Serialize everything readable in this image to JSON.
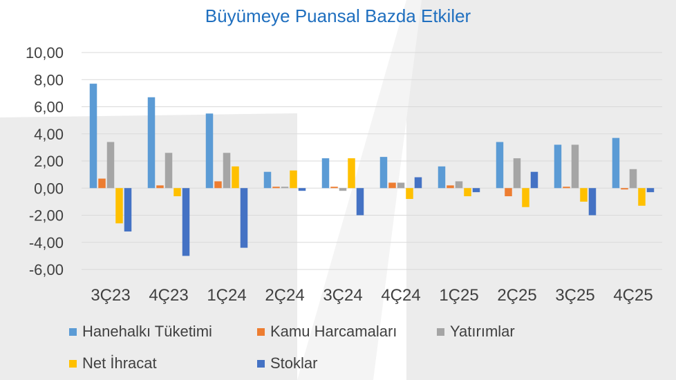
{
  "chart_data": {
    "type": "bar",
    "title": "Büyümeye Puansal Bazda Etkiler",
    "categories": [
      "3Ç23",
      "4Ç23",
      "1Ç24",
      "2Ç24",
      "3Ç24",
      "4Ç24",
      "1Ç25",
      "2Ç25",
      "3Ç25",
      "4Ç25"
    ],
    "y_ticks": [
      "10,00",
      "8,00",
      "6,00",
      "4,00",
      "2,00",
      "0,00",
      "-2,00",
      "-4,00",
      "-6,00"
    ],
    "ylim": [
      -6,
      10
    ],
    "grid": true,
    "legend_position": "bottom",
    "series": [
      {
        "name": "Hanehalkı Tüketimi",
        "color": "#5b9bd5",
        "values": [
          7.7,
          6.7,
          5.5,
          1.2,
          2.2,
          2.3,
          1.6,
          3.4,
          3.2,
          3.7
        ]
      },
      {
        "name": "Kamu Harcamaları",
        "color": "#ed7d31",
        "values": [
          0.7,
          0.2,
          0.5,
          0.1,
          0.1,
          0.4,
          0.2,
          -0.6,
          0.1,
          -0.1
        ]
      },
      {
        "name": "Yatırımlar",
        "color": "#a5a5a5",
        "values": [
          3.4,
          2.6,
          2.6,
          0.1,
          -0.2,
          0.4,
          0.5,
          2.2,
          3.2,
          1.4
        ]
      },
      {
        "name": "Net İhracat",
        "color": "#ffc000",
        "values": [
          -2.6,
          -0.6,
          1.6,
          1.3,
          2.2,
          -0.8,
          -0.6,
          -1.4,
          -1.0,
          -1.3
        ]
      },
      {
        "name": "Stoklar",
        "color": "#4472c4",
        "values": [
          -3.2,
          -5.0,
          -4.4,
          -0.2,
          -2.0,
          0.8,
          -0.3,
          1.2,
          -2.0,
          -0.3
        ]
      }
    ]
  }
}
